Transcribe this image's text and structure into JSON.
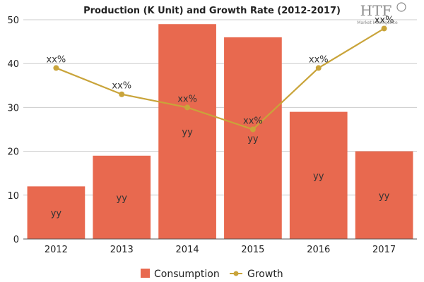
{
  "chart_data": {
    "type": "bar",
    "title": "Production (K Unit) and Growth Rate (2012-2017)",
    "categories": [
      "2012",
      "2013",
      "2014",
      "2015",
      "2016",
      "2017"
    ],
    "ylim": [
      0,
      50
    ],
    "yticks": [
      0,
      10,
      20,
      30,
      40,
      50
    ],
    "series": [
      {
        "name": "Consumption",
        "type": "bar",
        "values": [
          12,
          19,
          49,
          46,
          29,
          20
        ],
        "labels": [
          "yy",
          "yy",
          "yy",
          "yy",
          "yy",
          "yy"
        ],
        "color": "#e8694f"
      },
      {
        "name": "Growth",
        "type": "line",
        "values": [
          39,
          33,
          30,
          25,
          39,
          48
        ],
        "labels": [
          "xx%",
          "xx%",
          "xx%",
          "xx%",
          "xx%",
          "xx%"
        ],
        "color": "#c9a43a"
      }
    ],
    "grid": true,
    "legend_position": "bottom"
  },
  "logo": {
    "text": "HTF",
    "subtitle": "Market Intelligence"
  }
}
